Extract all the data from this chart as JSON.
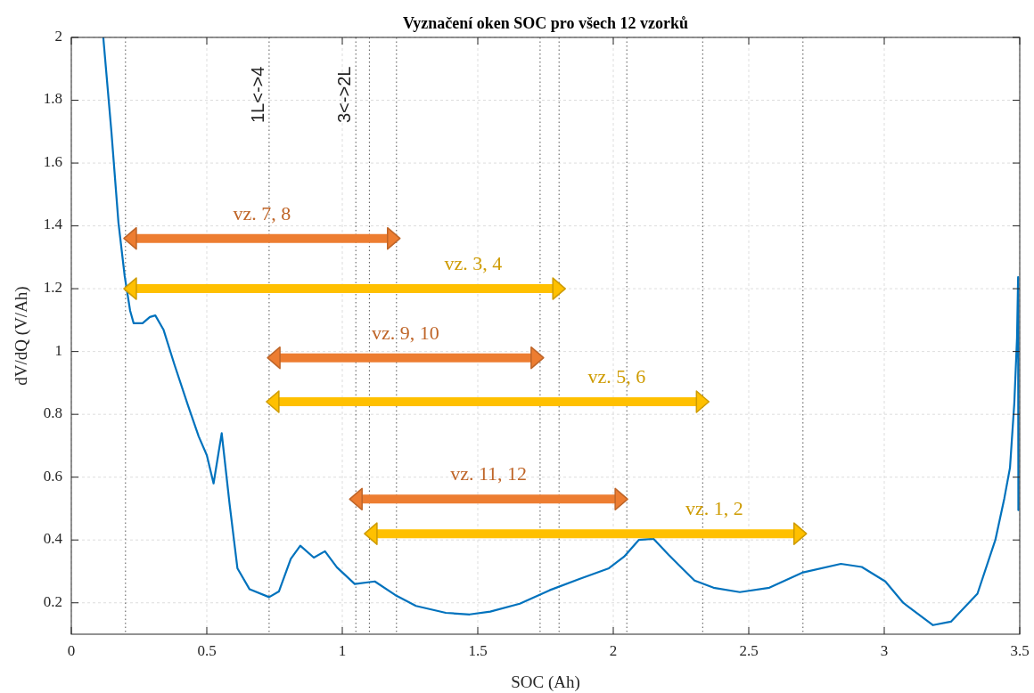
{
  "chart_data": {
    "type": "line",
    "title": "Vyznačení oken SOC pro všech 12 vzorků",
    "xlabel": "SOC (Ah)",
    "ylabel": "dV/dQ (V/Ah)",
    "xlim": [
      0,
      3.5
    ],
    "xticks": [
      0,
      0.5,
      1,
      1.5,
      2,
      2.5,
      3,
      3.5
    ],
    "ylim": [
      0.1,
      2
    ],
    "yticks": [
      0.2,
      0.4,
      0.6,
      0.8,
      1,
      1.2,
      1.4,
      1.6,
      1.8,
      2
    ],
    "grid": true,
    "series": [
      {
        "color": "#0072bd",
        "x": [
          0.118,
          0.148,
          0.174,
          0.197,
          0.217,
          0.23,
          0.263,
          0.29,
          0.31,
          0.34,
          0.38,
          0.43,
          0.47,
          0.5,
          0.525,
          0.555,
          0.584,
          0.613,
          0.658,
          0.73,
          0.766,
          0.81,
          0.845,
          0.895,
          0.936,
          0.98,
          1.046,
          1.12,
          1.195,
          1.272,
          1.382,
          1.47,
          1.546,
          1.655,
          1.765,
          1.875,
          1.984,
          2.04,
          2.094,
          2.148,
          2.204,
          2.26,
          2.3,
          2.37,
          2.467,
          2.576,
          2.697,
          2.84,
          2.917,
          3.004,
          3.07,
          3.18,
          3.246,
          3.344,
          3.41,
          3.443,
          3.464,
          3.48,
          3.49,
          3.494,
          3.495
        ],
        "values": [
          2.0,
          1.7,
          1.41,
          1.24,
          1.13,
          1.09,
          1.09,
          1.11,
          1.115,
          1.07,
          0.96,
          0.83,
          0.73,
          0.67,
          0.58,
          0.74,
          0.515,
          0.31,
          0.243,
          0.218,
          0.236,
          0.34,
          0.382,
          0.344,
          0.364,
          0.313,
          0.26,
          0.268,
          0.225,
          0.19,
          0.168,
          0.163,
          0.172,
          0.197,
          0.24,
          0.276,
          0.31,
          0.347,
          0.4,
          0.404,
          0.353,
          0.305,
          0.271,
          0.248,
          0.234,
          0.248,
          0.296,
          0.324,
          0.314,
          0.268,
          0.2,
          0.129,
          0.14,
          0.229,
          0.4,
          0.532,
          0.63,
          0.836,
          1.043,
          1.237,
          0.495
        ]
      },
      {
        "marker": "triangle",
        "color": "#ed7d31",
        "x": [
          0.217,
          1.19
        ],
        "values": [
          1.36,
          1.36
        ]
      },
      {
        "marker": "triangle",
        "color": "#ffc000",
        "x": [
          0.217,
          1.8
        ],
        "values": [
          1.2,
          1.2
        ]
      },
      {
        "marker": "triangle",
        "color": "#ed7d31",
        "x": [
          0.747,
          1.72
        ],
        "values": [
          0.98,
          0.98
        ]
      },
      {
        "marker": "triangle",
        "color": "#ffc000",
        "x": [
          0.743,
          2.33
        ],
        "values": [
          0.84,
          0.84
        ]
      },
      {
        "marker": "triangle",
        "color": "#ed7d31",
        "x": [
          1.05,
          2.03
        ],
        "values": [
          0.53,
          0.53
        ]
      },
      {
        "marker": "triangle",
        "color": "#ffc000",
        "x": [
          1.105,
          2.69
        ],
        "values": [
          0.42,
          0.42
        ]
      }
    ],
    "annotations": [
      "vz. 7, 8",
      "vz. 3, 4",
      "vz. 9, 10",
      "vz. 5, 6",
      "vz. 11, 12",
      "vz. 1, 2"
    ],
    "ref_lines": [
      {
        "axis": "x",
        "value": 0.2,
        "color": "#555555",
        "line_style": "dotted"
      },
      {
        "axis": "x",
        "value": 0.73,
        "label": "1L<->4",
        "color": "#555555",
        "line_style": "dotted"
      },
      {
        "axis": "x",
        "value": 1.05,
        "label": "3<->2L",
        "color": "#555555",
        "line_style": "dotted"
      },
      {
        "axis": "x",
        "value": 1.1,
        "color": "#555555",
        "line_style": "dotted"
      },
      {
        "axis": "x",
        "value": 1.2,
        "color": "#555555",
        "line_style": "dotted"
      },
      {
        "axis": "x",
        "value": 1.73,
        "color": "#555555",
        "line_style": "dotted"
      },
      {
        "axis": "x",
        "value": 1.8,
        "color": "#555555",
        "line_style": "dotted"
      },
      {
        "axis": "x",
        "value": 2.05,
        "color": "#555555",
        "line_style": "dotted"
      },
      {
        "axis": "x",
        "value": 2.33,
        "color": "#555555",
        "line_style": "dotted"
      },
      {
        "axis": "x",
        "value": 2.7,
        "color": "#555555",
        "line_style": "dotted"
      }
    ]
  }
}
